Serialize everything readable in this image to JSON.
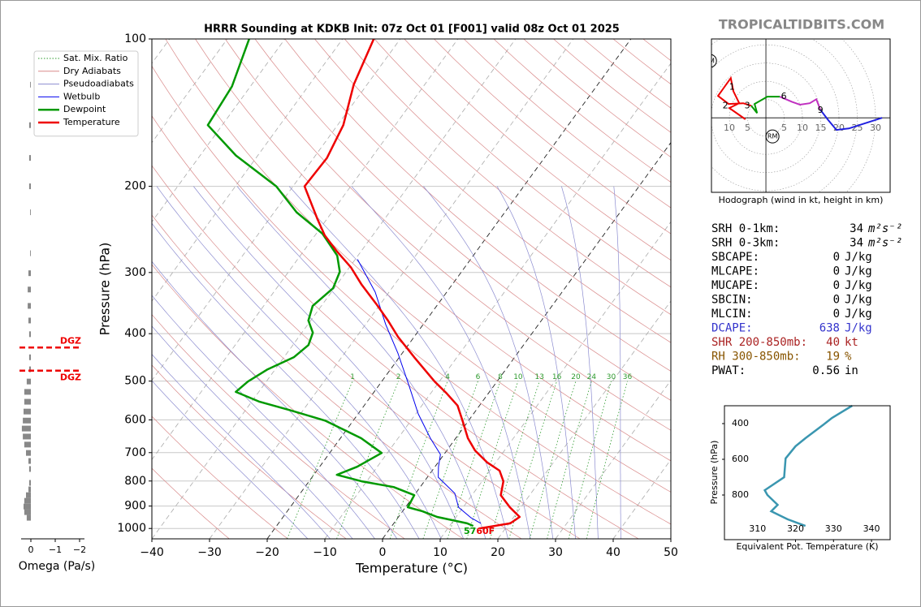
{
  "header": {
    "watermark": "TROPICALTIDBITS.COM"
  },
  "chart_data": [
    {
      "type": "skewt",
      "title": "HRRR Sounding at KDKB Init: 07z Oct 01 [F001] valid 08z Oct 01 2025",
      "x_label": "Temperature (°C)",
      "y_label": "Pressure (hPa)",
      "xlim": [
        -40,
        50
      ],
      "ylim": [
        1050,
        100
      ],
      "log_y": true,
      "xticks": [
        {
          "value": -40,
          "label": "−40"
        },
        {
          "value": -30,
          "label": "−30"
        },
        {
          "value": -20,
          "label": "−20"
        },
        {
          "value": -10,
          "label": "−10"
        },
        0,
        10,
        20,
        30,
        40,
        50
      ],
      "yticks": [
        100,
        200,
        300,
        400,
        500,
        600,
        700,
        800,
        900,
        1000
      ],
      "grid": true,
      "legend": "upper left",
      "highlight_isotherms": [
        -20,
        0
      ],
      "mixing_ratio_labels": [
        1,
        2,
        4,
        6,
        8,
        10,
        13,
        16,
        20,
        24,
        30,
        36
      ],
      "background_lines": [
        {
          "name": "Sat. Mix. Ratio",
          "color": "#2e9a2e"
        },
        {
          "name": "Dry Adiabats",
          "color": "#d98a8a"
        },
        {
          "name": "Pseudoadiabats",
          "color": "#8c8cd0"
        }
      ],
      "series": [
        {
          "name": "Wetbulb",
          "color": "#0000ee",
          "width": 1,
          "values": [
            15.1,
            12.7,
            9.2,
            6.8,
            1.9,
            0.6,
            -0.6,
            -4.4,
            -9.6,
            -14.8,
            -20.8,
            -26.5,
            -32.4,
            -39.6
          ],
          "pressure": [
            976,
            951,
            905,
            848,
            786,
            748,
            706,
            654,
            583,
            510,
            438,
            383,
            329,
            282
          ]
        },
        {
          "name": "Dewpoint",
          "color": "#009900",
          "width": 2.5,
          "values": [
            14.1,
            12.7,
            6.7,
            3.4,
            0.4,
            0.0,
            -4.6,
            -10.9,
            -16.0,
            -13.5,
            -11.0,
            -16.4,
            -24.9,
            -32.6,
            -38.6,
            -44.0,
            -43.2,
            -41.3,
            -38.3,
            -37.3,
            -38.1,
            -40.4,
            -41.5,
            -40.2,
            -41.1,
            -43.6,
            -48.9,
            -56.1,
            -62.9,
            -73.8,
            -82.5,
            -83.2,
            -86.2
          ],
          "pressure": [
            988,
            976,
            947,
            922,
            905,
            855,
            823,
            801,
            777,
            748,
            701,
            654,
            602,
            572,
            551,
            526,
            501,
            473,
            447,
            422,
            398,
            376,
            351,
            323,
            299,
            277,
            250,
            226,
            200,
            173,
            150,
            125,
            100
          ]
        },
        {
          "name": "Temperature",
          "color": "#ee0000",
          "width": 2.5,
          "values": [
            15.5,
            20.2,
            21.0,
            18.1,
            15.0,
            13.7,
            11.7,
            8.5,
            4.9,
            2.1,
            -0.8,
            -3.8,
            -7.2,
            -10.8,
            -17.4,
            -22.8,
            -26.6,
            -30.7,
            -35.8,
            -39.7,
            -44.1,
            -48.3,
            -51.7,
            -58.0,
            -57.7,
            -59.0,
            -62.3,
            -64.6
          ],
          "pressure": [
            1000,
            976,
            947,
            905,
            855,
            801,
            762,
            733,
            693,
            654,
            606,
            561,
            530,
            501,
            447,
            406,
            376,
            348,
            317,
            293,
            272,
            252,
            233,
            200,
            175,
            150,
            124,
            100
          ]
        }
      ],
      "surface_labels": {
        "dewpoint": 57,
        "temperature": "60F"
      }
    },
    {
      "type": "omega",
      "x_label": "Omega (Pa/s)",
      "color": "#888888",
      "xlim": [
        0.4,
        -2.2
      ],
      "ylim": [
        1050,
        100
      ],
      "xticks": [
        0,
        {
          "value": -1,
          "label": "−1"
        },
        {
          "value": -2,
          "label": "−2"
        }
      ],
      "pressure": [
        124,
        150,
        175,
        200,
        226,
        274,
        301,
        325,
        351,
        376,
        401,
        447,
        473,
        501,
        526,
        551,
        577,
        602,
        625,
        649,
        674,
        701,
        728,
        756,
        807,
        832,
        855,
        878,
        902,
        926,
        951
      ],
      "values": [
        0.03,
        0.07,
        0.07,
        0.07,
        0.03,
        0.03,
        0.1,
        0.13,
        0.13,
        0.1,
        0.07,
        0.07,
        0.07,
        0.17,
        0.27,
        0.27,
        0.3,
        0.33,
        0.37,
        0.33,
        0.27,
        0.2,
        0.1,
        0.07,
        0.07,
        0.1,
        0.2,
        0.27,
        0.3,
        0.27,
        0.17
      ],
      "dgz": {
        "label": "DGZ",
        "color": "#ee0000",
        "pressure": [
          427,
          476
        ]
      }
    },
    {
      "type": "hodograph",
      "x_label": "Hodograph (wind in kt, height in km)",
      "xlim": [
        -14.9,
        34
      ],
      "ylim": [
        -20.4,
        21.6
      ],
      "xticks": [
        {
          "value": -10,
          "label": "10"
        },
        {
          "value": -5,
          "label": "5"
        },
        5,
        10,
        15,
        20,
        25,
        30
      ],
      "series": [
        {
          "color": "#ee0000",
          "u": [
            -5.6,
            -10,
            -7.3,
            -8.9,
            -9.6,
            -13.1,
            -10.2,
            -6.2,
            -4
          ],
          "v": [
            -0.4,
            2.7,
            4,
            7.3,
            10.9,
            6,
            3.8,
            4,
            3.3
          ]
        },
        {
          "color": "#009900",
          "u": [
            -4,
            -2.4,
            -3.1,
            0.4,
            3.8
          ],
          "v": [
            3.3,
            1.3,
            3.8,
            5.8,
            5.8
          ]
        },
        {
          "color": "#c030c0",
          "u": [
            3.8,
            7.1,
            9.3,
            12,
            13.8,
            14.9
          ],
          "v": [
            5.8,
            4.4,
            3.6,
            4,
            5.1,
            2.2
          ]
        },
        {
          "color": "#2020e0",
          "u": [
            14.9,
            17.1,
            19.3,
            22.7,
            31.8
          ],
          "v": [
            2.2,
            -0.7,
            -3.3,
            -2.9,
            0
          ]
        }
      ],
      "height_labels": {
        "heights": [
          1,
          2,
          3,
          6,
          9
        ],
        "u": [
          -9.3,
          -11.1,
          -5.1,
          4.9,
          14.9
        ],
        "v": [
          8.4,
          3.3,
          3.3,
          5.8,
          2.0
        ]
      },
      "storm_motion": [
        {
          "label": "LM",
          "u": -15.3,
          "v": 15.6
        },
        {
          "label": "RM",
          "u": 1.8,
          "v": -5.1
        }
      ]
    },
    {
      "type": "line",
      "x_label": "Equivalent Pot. Temperature (K)",
      "y_label": "Pressure (hPa)",
      "color": "#3a96b0",
      "xlim": [
        301.3,
        344.9
      ],
      "ylim": [
        1050,
        300
      ],
      "xticks": [
        310,
        320,
        330,
        340
      ],
      "yticks": [
        400,
        600,
        800
      ],
      "values": [
        322.6,
        317.9,
        313.6,
        315.3,
        312.6,
        311.9,
        317.0,
        317.4,
        320.0,
        322.6,
        327.4,
        329.6,
        334.9
      ],
      "pressure": [
        973,
        936,
        891,
        855,
        800,
        773,
        700,
        595,
        527,
        482,
        405,
        368,
        300
      ]
    }
  ],
  "stats": [
    {
      "label": "SRH 0-1km:",
      "value": 34,
      "unit": "m²s⁻²",
      "color": "#000000"
    },
    {
      "label": "SRH 0-3km:",
      "value": 34,
      "unit": "m²s⁻²",
      "color": "#000000"
    },
    {
      "label": "SBCAPE:",
      "value": 0,
      "unit": "J/kg",
      "color": "#000000"
    },
    {
      "label": "MLCAPE:",
      "value": 0,
      "unit": "J/kg",
      "color": "#000000"
    },
    {
      "label": "MUCAPE:",
      "value": 0,
      "unit": "J/kg",
      "color": "#000000"
    },
    {
      "label": "SBCIN:",
      "value": 0,
      "unit": "J/kg",
      "color": "#000000"
    },
    {
      "label": "MLCIN:",
      "value": 0,
      "unit": "J/kg",
      "color": "#000000"
    },
    {
      "label": "DCAPE:",
      "value": 638,
      "unit": "J/kg",
      "color": "#3333cc"
    },
    {
      "label": "SHR 200-850mb:",
      "value": 40,
      "unit": "kt",
      "color": "#aa2222"
    },
    {
      "label": "RH 300-850mb:",
      "value": 19,
      "unit": "%",
      "color": "#885500"
    },
    {
      "label": "PWAT:",
      "value": 0.56,
      "unit": "in",
      "color": "#000000"
    }
  ]
}
